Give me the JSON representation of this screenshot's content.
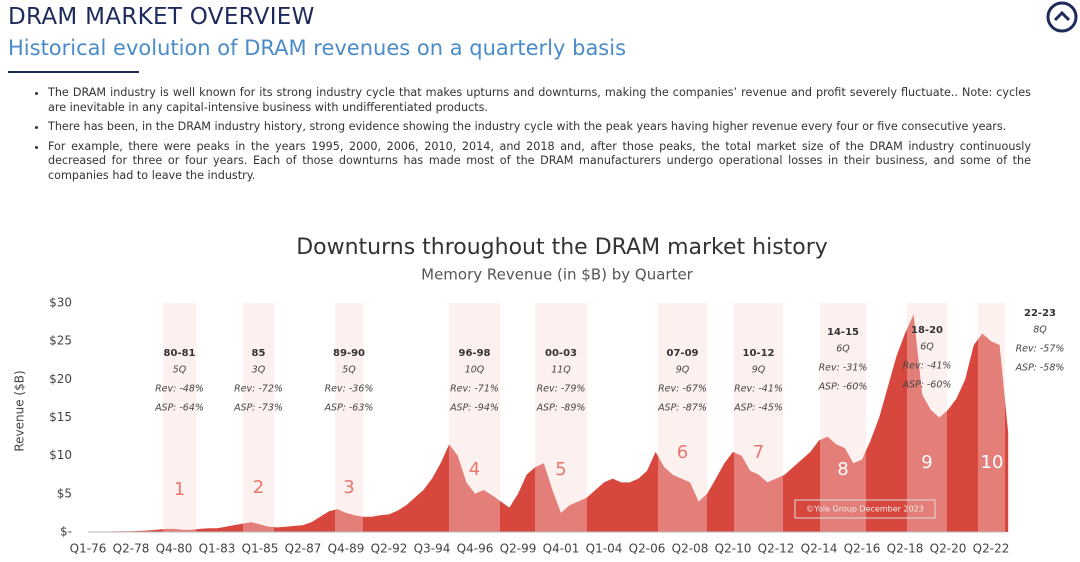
{
  "header": {
    "title": "DRAM MARKET OVERVIEW",
    "subtitle": "Historical evolution of DRAM revenues on a quarterly basis"
  },
  "bullets": [
    "The DRAM industry is well known for its strong industry cycle that makes upturns and downturns, making the companies’ revenue and profit severely fluctuate.. Note: cycles are inevitable in any capital-intensive business with undifferentiated products.",
    "There has been, in the DRAM industry history, strong evidence showing the industry cycle with the peak years having higher revenue every four or five consecutive years.",
    "For example, there were peaks in the years  1995, 2000, 2006, 2010, 2014, and 2018 and, after those peaks, the total market size of the DRAM industry continuously decreased for three or four years. Each of those downturns has made most of the DRAM manufacturers undergo operational losses in their business, and some of the companies had to leave the industry."
  ],
  "chart_data": {
    "type": "area",
    "title": "Downturns throughout the DRAM market history",
    "subtitle": "Memory Revenue (in $B) by Quarter",
    "y_label": "Revenue ($B)",
    "color": "#d8473e",
    "ylim": [
      0,
      30
    ],
    "yticks": [
      {
        "value": 0,
        "label": "$-"
      },
      {
        "value": 5,
        "label": "$5"
      },
      {
        "value": 10,
        "label": "$10"
      },
      {
        "value": 15,
        "label": "$15"
      },
      {
        "value": 20,
        "label": "$20"
      },
      {
        "value": 25,
        "label": "$25"
      },
      {
        "value": 30,
        "label": "$30"
      }
    ],
    "categories": [
      "Q1-76",
      null,
      null,
      null,
      null,
      "Q2-78",
      null,
      null,
      null,
      null,
      "Q4-80",
      null,
      null,
      null,
      null,
      "Q1-83",
      null,
      null,
      null,
      null,
      "Q1-85",
      null,
      null,
      null,
      null,
      "Q2-87",
      null,
      null,
      null,
      null,
      "Q4-89",
      null,
      null,
      null,
      null,
      "Q2-92",
      null,
      null,
      null,
      null,
      "Q3-94",
      null,
      null,
      null,
      null,
      "Q4-96",
      null,
      null,
      null,
      null,
      "Q2-99",
      null,
      null,
      null,
      null,
      "Q4-01",
      null,
      null,
      null,
      null,
      "Q1-04",
      null,
      null,
      null,
      null,
      "Q2-06",
      null,
      null,
      null,
      null,
      "Q2-08",
      null,
      null,
      null,
      null,
      "Q2-10",
      null,
      null,
      null,
      null,
      "Q2-12",
      null,
      null,
      null,
      null,
      "Q2-14",
      null,
      null,
      null,
      null,
      "Q2-16",
      null,
      null,
      null,
      null,
      "Q2-18",
      null,
      null,
      null,
      null,
      "Q2-20",
      null,
      null,
      null,
      null,
      "Q2-22",
      null,
      null
    ],
    "values": [
      0.05,
      0.05,
      0.06,
      0.08,
      0.1,
      0.1,
      0.15,
      0.2,
      0.3,
      0.4,
      0.4,
      0.3,
      0.3,
      0.4,
      0.5,
      0.5,
      0.7,
      0.9,
      1.1,
      1.3,
      1.0,
      0.7,
      0.6,
      0.7,
      0.8,
      0.9,
      1.3,
      2.0,
      2.7,
      3.0,
      2.5,
      2.2,
      2.0,
      2.0,
      2.2,
      2.3,
      2.8,
      3.5,
      4.5,
      5.5,
      7.0,
      9.0,
      11.5,
      10.0,
      6.5,
      5.0,
      5.5,
      4.8,
      4.0,
      3.2,
      5.0,
      7.5,
      8.5,
      9.0,
      5.5,
      2.5,
      3.5,
      4.0,
      4.5,
      5.5,
      6.5,
      7.0,
      6.5,
      6.5,
      7.0,
      8.0,
      10.5,
      8.5,
      7.5,
      7.0,
      6.5,
      4.0,
      5.0,
      7.0,
      9.0,
      10.5,
      10.0,
      8.0,
      7.5,
      6.5,
      7.0,
      7.5,
      8.5,
      9.5,
      10.5,
      12.0,
      12.5,
      11.5,
      11.0,
      9.0,
      9.5,
      12.0,
      15.0,
      19.0,
      23.0,
      26.0,
      28.5,
      18.0,
      16.0,
      15.0,
      16.0,
      17.5,
      20.0,
      24.5,
      26.0,
      25.0,
      24.5,
      13.0
    ],
    "downturns": [
      {
        "number": "1",
        "period": "80-81",
        "duration": "5Q",
        "revenue": "Rev: -48%",
        "asp": "ASP: -64%"
      },
      {
        "number": "2",
        "period": "85",
        "duration": "3Q",
        "revenue": "Rev: -72%",
        "asp": "ASP: -73%"
      },
      {
        "number": "3",
        "period": "89-90",
        "duration": "5Q",
        "revenue": "Rev: -36%",
        "asp": "ASP: -63%"
      },
      {
        "number": "4",
        "period": "96-98",
        "duration": "10Q",
        "revenue": "Rev: -71%",
        "asp": "ASP: -94%"
      },
      {
        "number": "5",
        "period": "00-03",
        "duration": "11Q",
        "revenue": "Rev: -79%",
        "asp": "ASP: -89%"
      },
      {
        "number": "6",
        "period": "07-09",
        "duration": "9Q",
        "revenue": "Rev: -67%",
        "asp": "ASP: -87%"
      },
      {
        "number": "7",
        "period": "10-12",
        "duration": "9Q",
        "revenue": "Rev: -41%",
        "asp": "ASP: -45%"
      },
      {
        "number": "8",
        "period": "14-15",
        "duration": "6Q",
        "revenue": "Rev: -31%",
        "asp": "ASP: -60%"
      },
      {
        "number": "9",
        "period": "18-20",
        "duration": "6Q",
        "revenue": "Rev: -41%",
        "asp": "ASP: -60%"
      },
      {
        "number": "10",
        "period": "22-23",
        "duration": "8Q",
        "revenue": "Rev: -57%",
        "asp": "ASP: -58%"
      }
    ],
    "credit": "©Yole Group December 2023"
  }
}
